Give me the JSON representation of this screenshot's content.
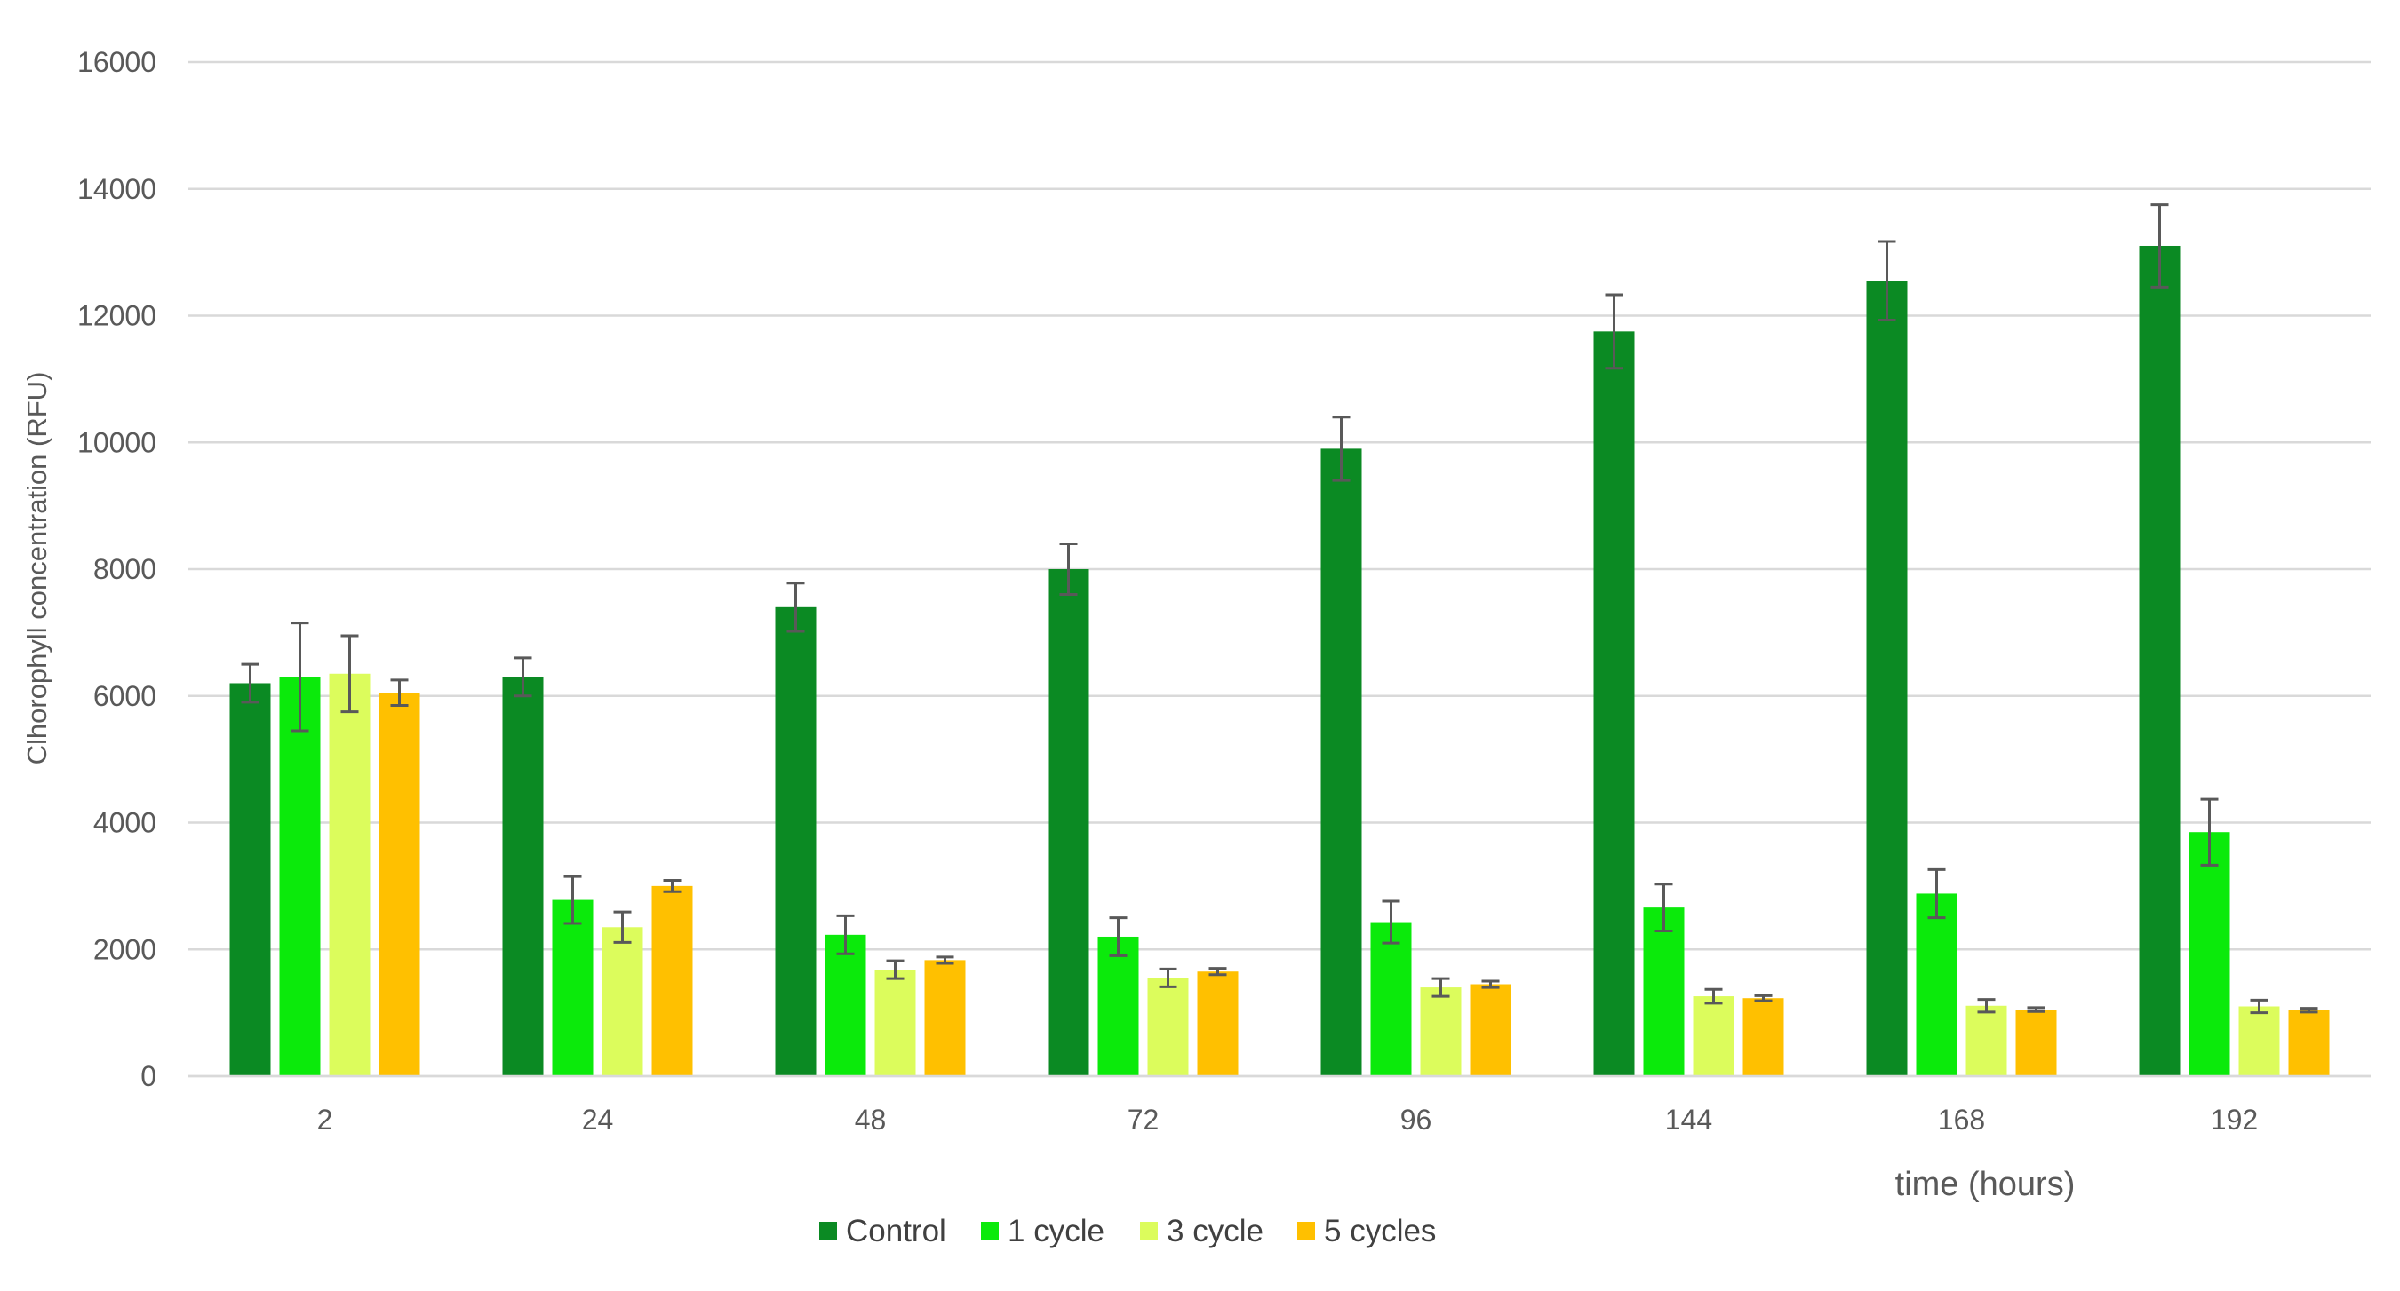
{
  "chart_data": {
    "type": "bar",
    "title": "",
    "xlabel": "time (hours)",
    "ylabel": "Clhorophyll concentration (RFU)",
    "categories": [
      "2",
      "24",
      "48",
      "72",
      "96",
      "144",
      "168",
      "192"
    ],
    "ylim": [
      0,
      16000
    ],
    "yticks": [
      0,
      2000,
      4000,
      6000,
      8000,
      10000,
      12000,
      14000,
      16000
    ],
    "grid": true,
    "legend_position": "bottom",
    "series": [
      {
        "name": "Control",
        "color": "#0b8a23",
        "values": [
          6200,
          6300,
          7400,
          8000,
          9900,
          11750,
          12550,
          13100
        ],
        "errors": [
          300,
          300,
          380,
          400,
          500,
          580,
          620,
          650
        ]
      },
      {
        "name": "1 cycle",
        "color": "#0bea0b",
        "values": [
          6300,
          2780,
          2230,
          2200,
          2430,
          2660,
          2880,
          3850
        ],
        "errors": [
          850,
          370,
          300,
          300,
          330,
          370,
          380,
          520
        ]
      },
      {
        "name": "3 cycle",
        "color": "#dcfc5c",
        "values": [
          6350,
          2350,
          1680,
          1550,
          1400,
          1260,
          1110,
          1100
        ],
        "errors": [
          600,
          240,
          140,
          140,
          140,
          110,
          100,
          100
        ]
      },
      {
        "name": "5 cycles",
        "color": "#ffc000",
        "values": [
          6050,
          3000,
          1830,
          1650,
          1450,
          1230,
          1050,
          1040
        ],
        "errors": [
          200,
          90,
          50,
          50,
          50,
          40,
          30,
          30
        ]
      }
    ]
  }
}
